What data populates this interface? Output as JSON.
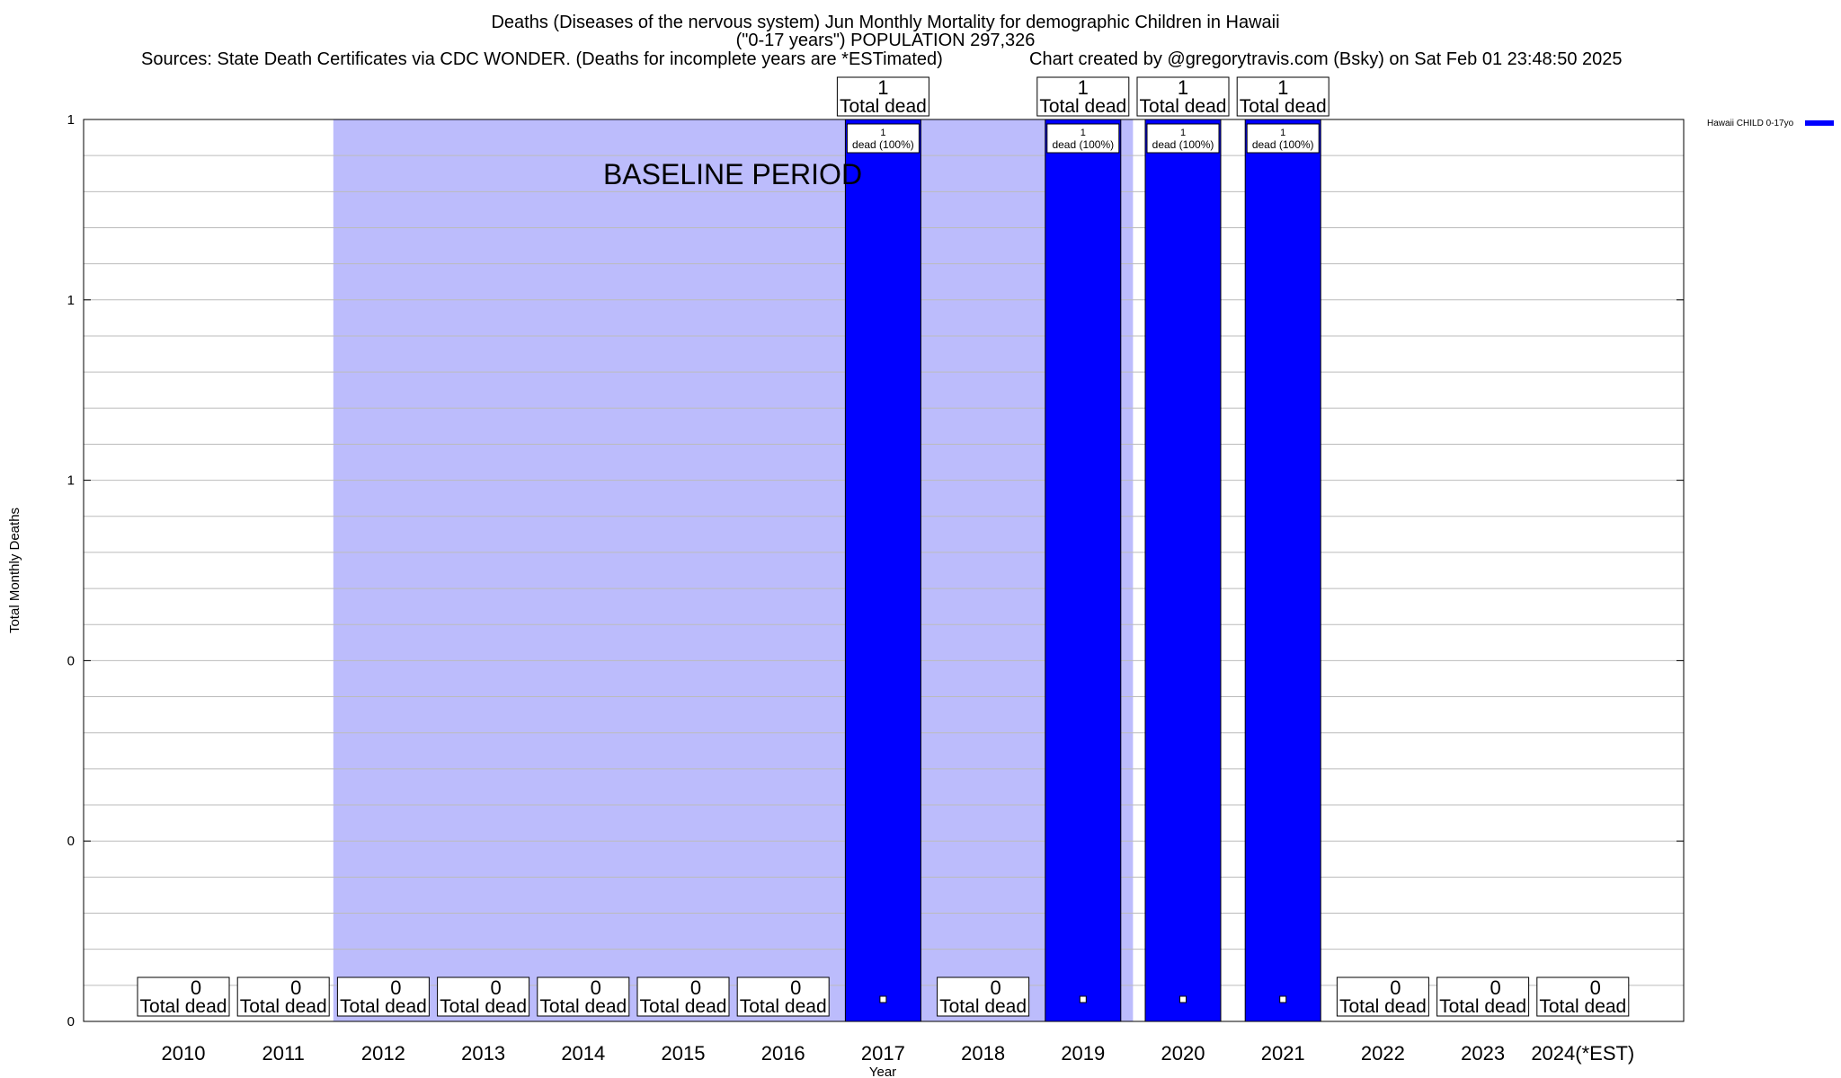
{
  "chart_data": {
    "type": "bar",
    "title": "Deaths (Diseases of the nervous system) Jun Monthly Mortality for demographic Children in Hawaii",
    "subtitle": "(\"0-17 years\") POPULATION 297,326",
    "sources": "Sources: State Death Certificates via CDC WONDER. (Deaths for incomplete years are *ESTimated)",
    "credit": "Chart created by @gregorytravis.com (Bsky) on Sat Feb 01 23:48:50 2025",
    "xlabel": "Year",
    "ylabel": "Total Monthly Deaths",
    "ylim": [
      0,
      1
    ],
    "y_tick_labels": [
      "0",
      "0",
      "0",
      "1",
      "1",
      "1"
    ],
    "categories": [
      "2010",
      "2011",
      "2012",
      "2013",
      "2014",
      "2015",
      "2016",
      "2017",
      "2018",
      "2019",
      "2020",
      "2021",
      "2022",
      "2023",
      "2024(*EST)"
    ],
    "series": [
      {
        "name": "Hawaii CHILD 0-17yo",
        "color": "#0000ff",
        "values": [
          0,
          0,
          0,
          0,
          0,
          0,
          0,
          1,
          0,
          1,
          1,
          1,
          0,
          0,
          0
        ]
      }
    ],
    "total_label": "Total dead",
    "bar_inner_text": "dead (100%)",
    "baseline_period": {
      "label": "BASELINE PERIOD",
      "start_year": "2012",
      "end_year": "2019",
      "color": "#bcbcfc"
    },
    "grid": true,
    "legend_position": "top-right"
  }
}
